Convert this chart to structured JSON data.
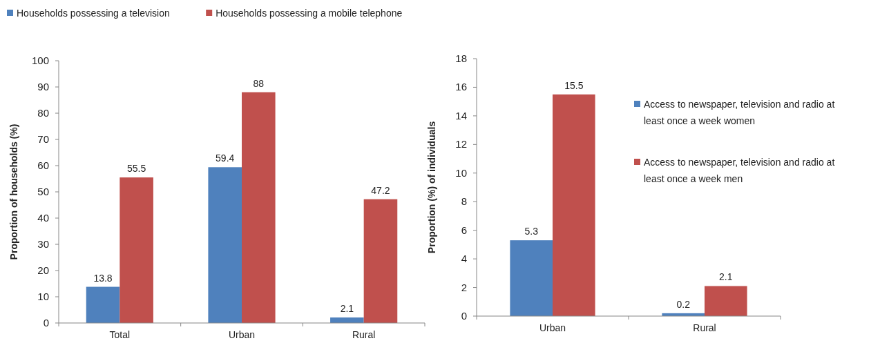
{
  "chart_data": [
    {
      "type": "bar",
      "ylabel": "Proportion of households (%)",
      "categories": [
        "Total",
        "Urban",
        "Rural"
      ],
      "series": [
        {
          "name": "Households possessing a television",
          "color": "#4f81bd",
          "values": [
            13.8,
            59.4,
            2.1
          ]
        },
        {
          "name": "Households possessing a mobile telephone",
          "color": "#c0504d",
          "values": [
            55.5,
            88,
            47.2
          ]
        }
      ],
      "ylim": [
        0,
        100
      ],
      "yticks": [
        0,
        10,
        20,
        30,
        40,
        50,
        60,
        70,
        80,
        90,
        100
      ],
      "data_labels": true,
      "legend": "top left",
      "grid": false
    },
    {
      "type": "bar",
      "ylabel": "Proportion (%) of individuals",
      "categories": [
        "Urban",
        "Rural"
      ],
      "series": [
        {
          "name": "Access to newspaper, television and radio at least once a week women",
          "color": "#4f81bd",
          "values": [
            5.3,
            0.2
          ]
        },
        {
          "name": "Access to newspaper, television and radio at least once a week men",
          "color": "#c0504d",
          "values": [
            15.5,
            2.1
          ]
        }
      ],
      "ylim": [
        0,
        18
      ],
      "yticks": [
        0,
        2,
        4,
        6,
        8,
        10,
        12,
        14,
        16,
        18
      ],
      "data_labels": true,
      "legend": "right",
      "grid": false
    }
  ]
}
